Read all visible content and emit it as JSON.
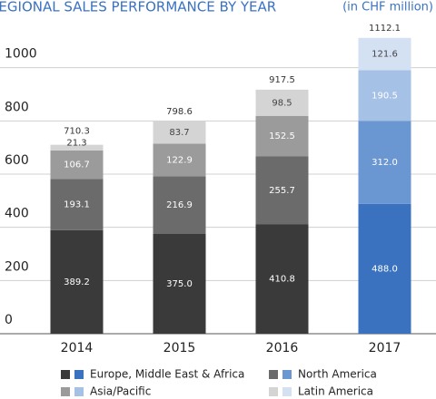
{
  "chart_data": {
    "type": "stacked_bar",
    "title": "REGIONAL SALES PERFORMANCE BY YEAR",
    "subtitle": "(in CHF million)",
    "categories": [
      "2014",
      "2015",
      "2016",
      "2017"
    ],
    "series": [
      {
        "name": "Europe, Middle East & Africa",
        "colors": [
          "#3a3a3a",
          "#3a3a3a",
          "#3a3a3a",
          "#3a72c0"
        ],
        "label_color": "#ffffff",
        "values": [
          389.2,
          375.0,
          410.8,
          488.0
        ],
        "value_labels": [
          "389.2",
          "375.0",
          "410.8",
          "488.0"
        ]
      },
      {
        "name": "North America",
        "colors": [
          "#6b6b6b",
          "#6b6b6b",
          "#6b6b6b",
          "#6a96d2"
        ],
        "label_color": "#ffffff",
        "values": [
          193.1,
          216.9,
          255.7,
          312.0
        ],
        "value_labels": [
          "193.1",
          "216.9",
          "255.7",
          "312.0"
        ]
      },
      {
        "name": "Asia/Pacific",
        "colors": [
          "#9b9b9b",
          "#9b9b9b",
          "#9b9b9b",
          "#a6c1e6"
        ],
        "label_color": "#ffffff",
        "values": [
          106.7,
          122.9,
          152.5,
          190.5
        ],
        "value_labels": [
          "106.7",
          "122.9",
          "152.5",
          "190.5"
        ]
      },
      {
        "name": "Latin America",
        "colors": [
          "#d4d4d4",
          "#d4d4d4",
          "#d4d4d4",
          "#d3e1f3"
        ],
        "label_color": "#444444",
        "values": [
          21.3,
          83.7,
          98.5,
          121.6
        ],
        "value_labels": [
          "21.3",
          "83.7",
          "98.5",
          "121.6"
        ]
      }
    ],
    "totals": [
      710.3,
      798.6,
      917.5,
      1112.1
    ],
    "ylim": [
      0,
      1200
    ],
    "yticks": [
      0,
      200,
      400,
      600,
      800,
      1000
    ],
    "grid": true
  }
}
